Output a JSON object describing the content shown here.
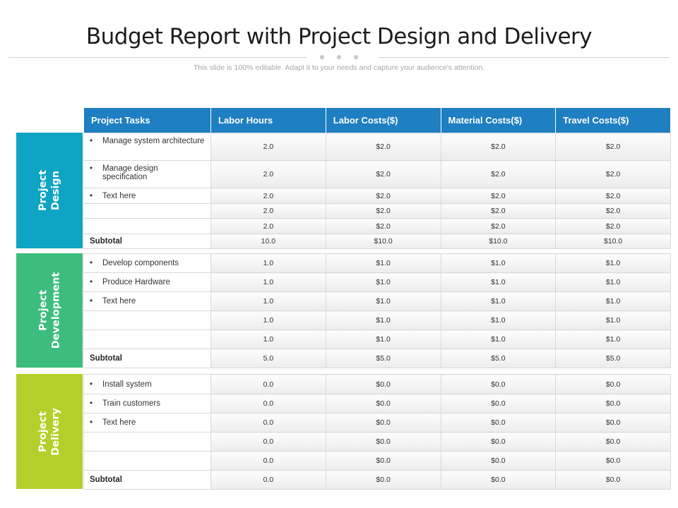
{
  "title": "Budget Report with Project Design and Delivery",
  "subtitle": "This slide is 100% editable. Adapt it to your needs and capture your audience's attention.",
  "colors": {
    "header": "#1e7fc2",
    "design": "#0ea4c3",
    "development": "#3dbd7d",
    "delivery": "#b5cf2a"
  },
  "headers": [
    "Project Tasks",
    "Labor Hours",
    "Labor Costs($)",
    "Material Costs($)",
    "Travel Costs($)"
  ],
  "sections": [
    {
      "label": "Project\nDesign",
      "rows": [
        {
          "task": "Manage system architecture",
          "values": [
            "2.0",
            "$2.0",
            "$2.0",
            "$2.0"
          ]
        },
        {
          "task": "Manage design specification",
          "values": [
            "2.0",
            "$2.0",
            "$2.0",
            "$2.0"
          ]
        },
        {
          "task": "Text here",
          "values": [
            "2.0",
            "$2.0",
            "$2.0",
            "$2.0"
          ]
        },
        {
          "task": "",
          "values": [
            "2.0",
            "$2.0",
            "$2.0",
            "$2.0"
          ]
        },
        {
          "task": "",
          "values": [
            "2.0",
            "$2.0",
            "$2.0",
            "$2.0"
          ]
        }
      ],
      "subtotal_label": "Subtotal",
      "subtotal": [
        "10.0",
        "$10.0",
        "$10.0",
        "$10.0"
      ]
    },
    {
      "label": "Project\nDevelopment",
      "rows": [
        {
          "task": "Develop components",
          "values": [
            "1.0",
            "$1.0",
            "$1.0",
            "$1.0"
          ]
        },
        {
          "task": "Produce Hardware",
          "values": [
            "1.0",
            "$1.0",
            "$1.0",
            "$1.0"
          ]
        },
        {
          "task": "Text here",
          "values": [
            "1.0",
            "$1.0",
            "$1.0",
            "$1.0"
          ]
        },
        {
          "task": "",
          "values": [
            "1.0",
            "$1.0",
            "$1.0",
            "$1.0"
          ]
        },
        {
          "task": "",
          "values": [
            "1.0",
            "$1.0",
            "$1.0",
            "$1.0"
          ]
        }
      ],
      "subtotal_label": "Subtotal",
      "subtotal": [
        "5.0",
        "$5.0",
        "$5.0",
        "$5.0"
      ]
    },
    {
      "label": "Project\nDelivery",
      "rows": [
        {
          "task": "Install system",
          "values": [
            "0.0",
            "$0.0",
            "$0.0",
            "$0.0"
          ]
        },
        {
          "task": "Train customers",
          "values": [
            "0.0",
            "$0.0",
            "$0.0",
            "$0.0"
          ]
        },
        {
          "task": "Text here",
          "values": [
            "0.0",
            "$0.0",
            "$0.0",
            "$0.0"
          ]
        },
        {
          "task": "",
          "values": [
            "0.0",
            "$0.0",
            "$0.0",
            "$0.0"
          ]
        },
        {
          "task": "",
          "values": [
            "0.0",
            "$0.0",
            "$0.0",
            "$0.0"
          ]
        }
      ],
      "subtotal_label": "Subtotal",
      "subtotal": [
        "0.0",
        "$0.0",
        "$0.0",
        "$0.0"
      ]
    }
  ]
}
